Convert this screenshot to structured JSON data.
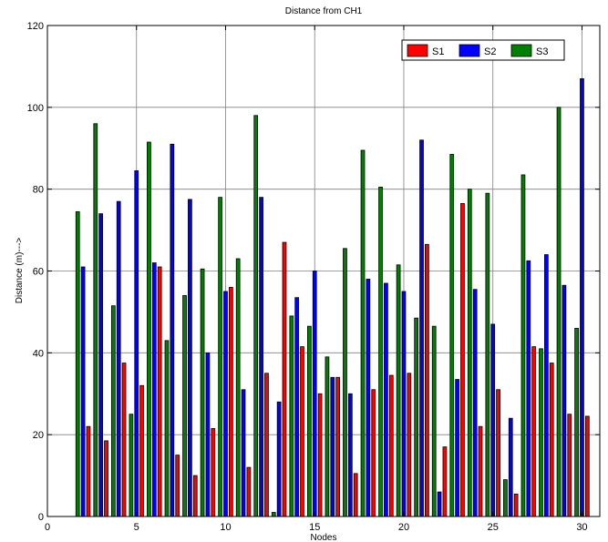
{
  "chart_data": {
    "type": "bar",
    "title": "Distance from CH1",
    "xlabel": "Nodes",
    "ylabel": "Distance (m)--->",
    "xlim": [
      0,
      31
    ],
    "ylim": [
      0,
      120
    ],
    "xticks": [
      0,
      5,
      10,
      15,
      20,
      25,
      30
    ],
    "yticks": [
      0,
      20,
      40,
      60,
      80,
      100,
      120
    ],
    "grid": true,
    "legend_position": "top-right",
    "categories": [
      2,
      3,
      4,
      5,
      6,
      7,
      8,
      9,
      10,
      11,
      12,
      13,
      14,
      15,
      16,
      17,
      18,
      19,
      20,
      21,
      22,
      23,
      24,
      25,
      26,
      27,
      28,
      29,
      30
    ],
    "series": [
      {
        "name": "S1",
        "color": "#ff0000",
        "values": [
          22,
          18.5,
          37.5,
          32,
          61,
          15,
          10,
          21.5,
          56,
          12,
          35,
          67,
          41.5,
          30,
          34,
          10.5,
          31,
          34.5,
          35,
          66.5,
          17,
          76.5,
          22,
          31,
          5.5,
          41.5,
          37.5,
          25,
          24.5
        ]
      },
      {
        "name": "S2",
        "color": "#0000ff",
        "values": [
          61,
          74,
          77,
          84.5,
          62,
          91,
          77.5,
          40,
          55,
          31,
          78,
          28,
          53.5,
          60,
          34,
          30,
          58,
          57,
          55,
          92,
          6,
          33.5,
          55.5,
          47,
          24,
          62.5,
          64,
          56.5,
          107
        ]
      },
      {
        "name": "S3",
        "color": "#008000",
        "values": [
          74.5,
          96,
          51.5,
          25,
          91.5,
          43,
          54,
          60.5,
          78,
          63,
          98,
          1,
          49,
          46.5,
          39,
          65.5,
          89.5,
          80.5,
          61.5,
          48.5,
          46.5,
          88.5,
          80,
          79,
          9,
          83.5,
          41,
          100,
          46
        ]
      }
    ]
  }
}
